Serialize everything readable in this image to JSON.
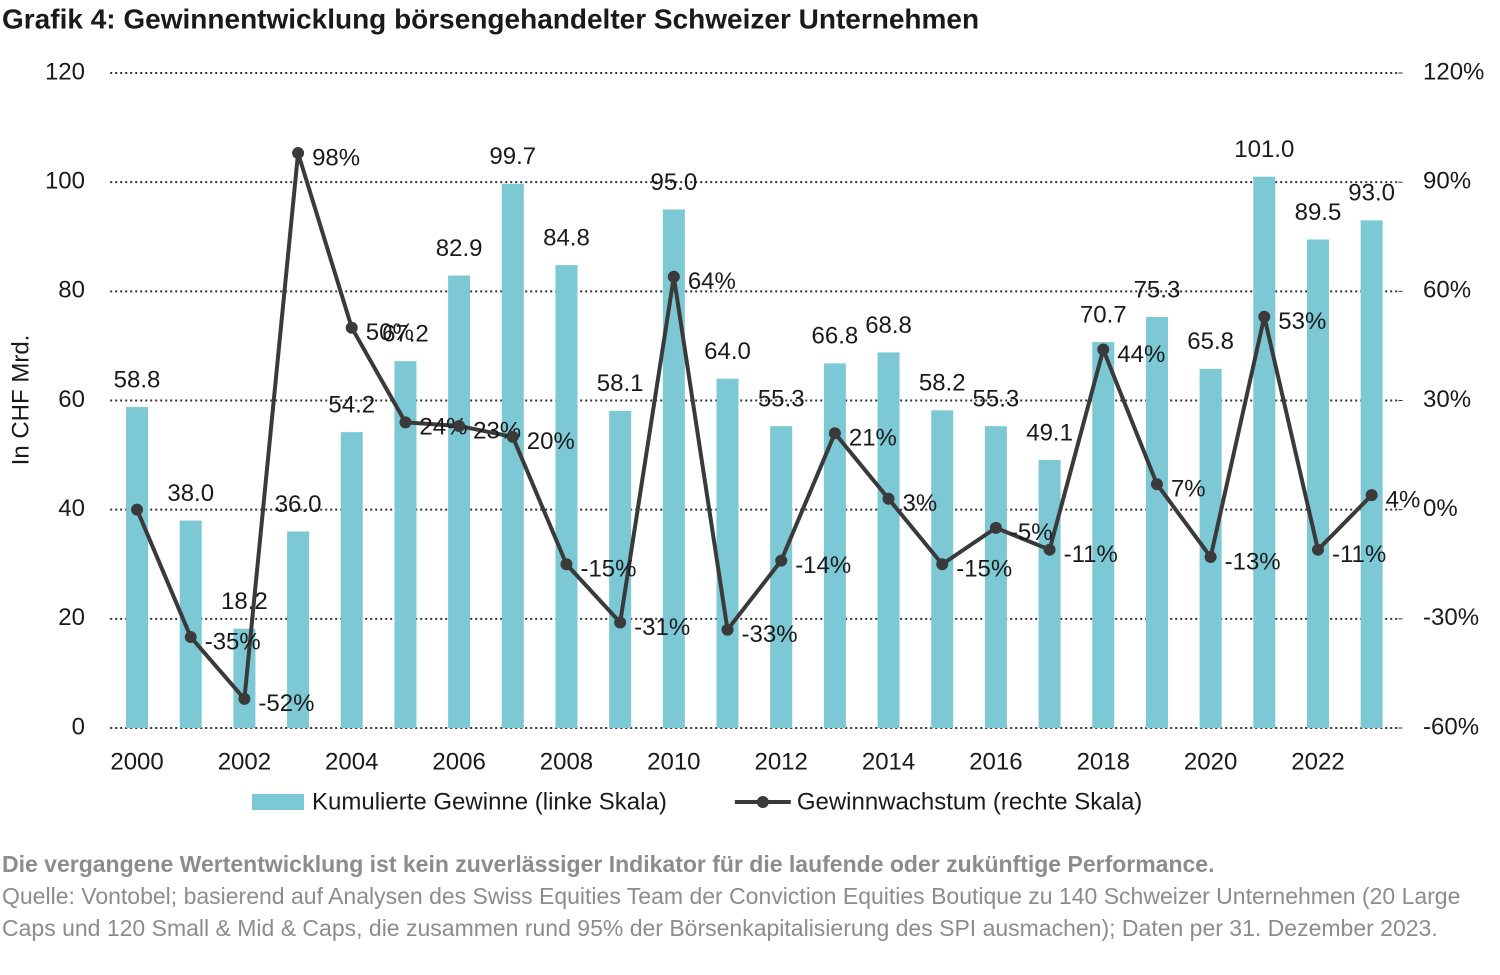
{
  "chart_data": {
    "type": "bar-line",
    "title": "Grafik 4: Gewinnentwicklung börsengehandelter Schweizer Unternehmen",
    "ylabel": "In CHF Mrd.",
    "categories": [
      "2000",
      null,
      "2002",
      null,
      "2004",
      null,
      "2006",
      null,
      "2008",
      null,
      "2010",
      null,
      "2012",
      null,
      "2014",
      null,
      "2016",
      null,
      "2018",
      null,
      "2020",
      null,
      "2022",
      null
    ],
    "series": [
      {
        "name": "Kumulierte Gewinne (linke Skala)",
        "type": "bar",
        "color": "#7cc8d4",
        "values": [
          58.8,
          38.0,
          18.2,
          36.0,
          54.2,
          67.2,
          82.9,
          99.7,
          84.8,
          58.1,
          95.0,
          64.0,
          55.3,
          66.8,
          68.8,
          58.2,
          55.3,
          49.1,
          70.7,
          75.3,
          65.8,
          101.0,
          89.5,
          93.0
        ],
        "value_labels": [
          "58.8",
          "38.0",
          "18.2",
          "36.0",
          "54.2",
          "67.2",
          "82.9",
          "99.7",
          "84.8",
          "58.1",
          "95.0",
          "64.0",
          "55.3",
          "66.8",
          "68.8",
          "58.2",
          "55.3",
          "49.1",
          "70.7",
          "75.3",
          "65.8",
          "101.0",
          "89.5",
          "93.0"
        ]
      },
      {
        "name": "Gewinnwachstum (rechte Skala)",
        "type": "line",
        "axis": "y2",
        "color": "#3a3a3a",
        "values": [
          0,
          -35,
          -52,
          98,
          50,
          24,
          23,
          20,
          -15,
          -31,
          64,
          -33,
          -14,
          21,
          3,
          -15,
          -5,
          -11,
          44,
          7,
          -13,
          53,
          -11,
          4
        ],
        "value_labels": [
          null,
          "-35%",
          "-52%",
          "98%",
          "50%",
          "24%",
          "23%",
          "20%",
          "-15%",
          "-31%",
          "64%",
          "-33%",
          "-14%",
          "21%",
          "3%",
          "-15%",
          "-5%",
          "-11%",
          "44%",
          "7%",
          "-13%",
          "53%",
          "-11%",
          "4%"
        ]
      }
    ],
    "ylim": [
      0,
      120
    ],
    "yticks": [
      0,
      20,
      40,
      60,
      80,
      100,
      120
    ],
    "y2lim": [
      -60,
      120
    ],
    "y2ticks": [
      {
        "value": -60,
        "label": "-60%"
      },
      {
        "value": -30,
        "label": "-30%"
      },
      {
        "value": 0,
        "label": "0%"
      },
      {
        "value": 30,
        "label": "30%"
      },
      {
        "value": 60,
        "label": "60%"
      },
      {
        "value": 90,
        "label": "90%"
      },
      {
        "value": 120,
        "label": "120%"
      }
    ],
    "grid": true,
    "legend": "bottom"
  },
  "footer": {
    "disclaimer": "Die vergangene Wertentwicklung ist kein zuverlässiger Indikator für die laufende oder zukünftige Performance.",
    "source": "Quelle: Vontobel; basierend auf Analysen des Swiss Equities Team der Conviction Equities Boutique zu 140 Schweizer Unternehmen (20 Large Caps und 120 Small & Mid & Caps, die zusammen rund 95% der Börsenkapitalisierung des SPI ausmachen); Daten per 31. Dezember 2023."
  }
}
